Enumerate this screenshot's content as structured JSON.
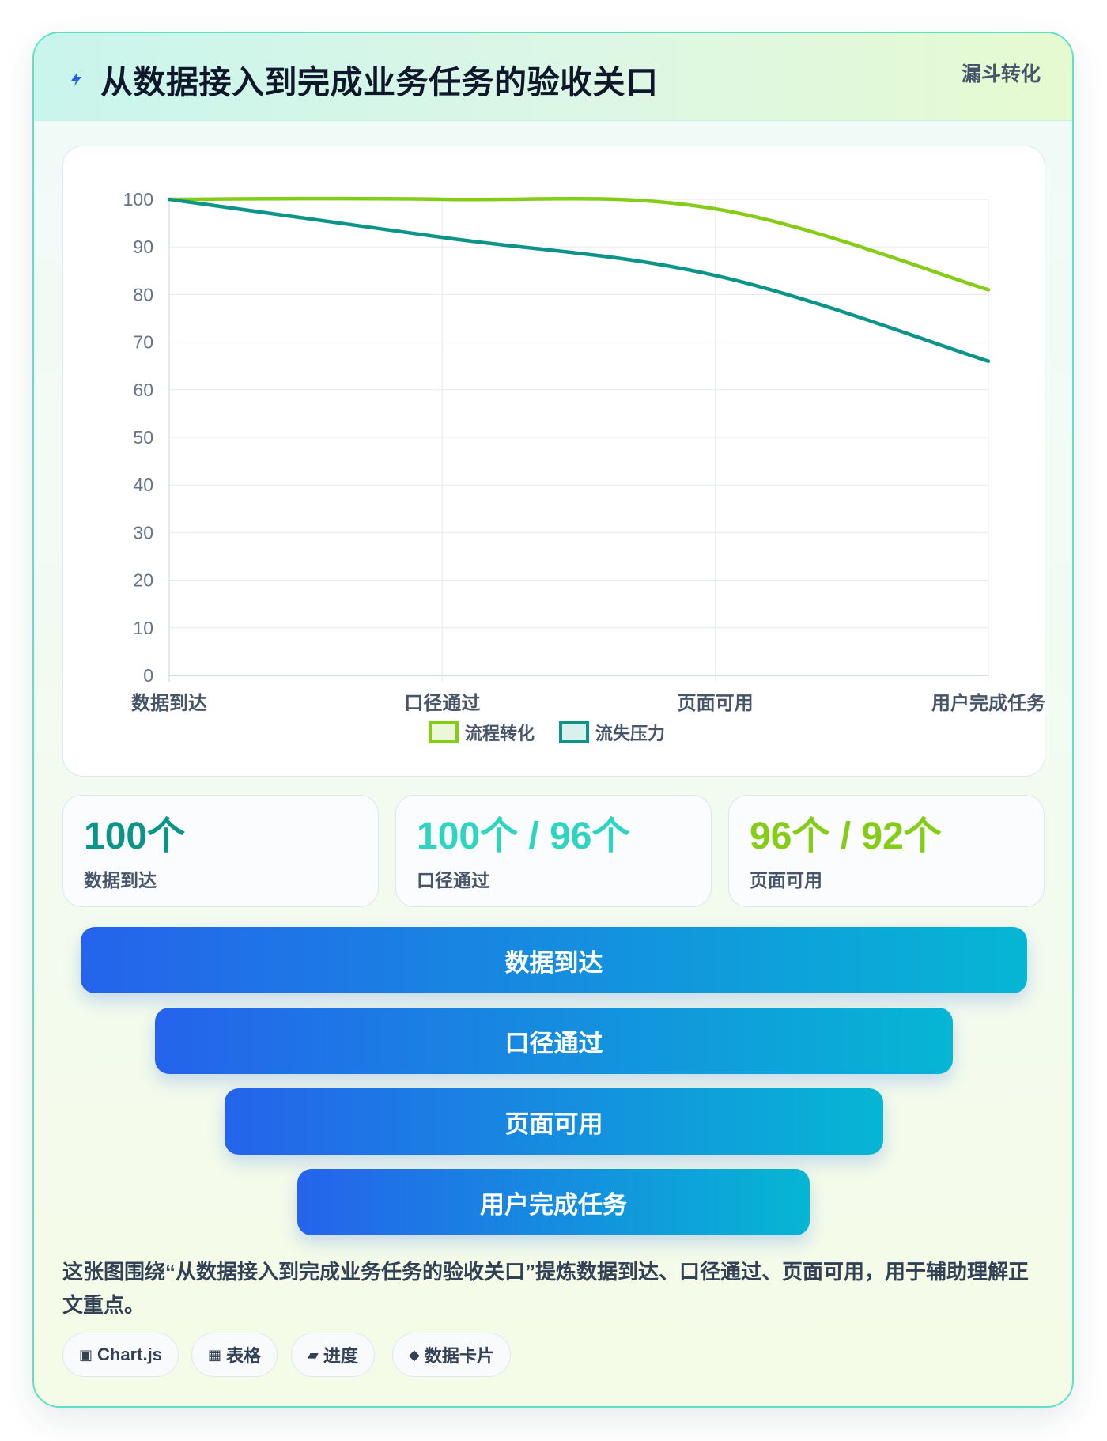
{
  "header": {
    "title": "从数据接入到完成业务任务的验收关口",
    "tag": "漏斗转化"
  },
  "chart_data": {
    "type": "line",
    "categories": [
      "数据到达",
      "口径通过",
      "页面可用",
      "用户完成任务"
    ],
    "series": [
      {
        "name": "流程转化",
        "values": [
          100,
          100,
          98,
          81
        ],
        "color": "#84cc16",
        "fill": "#ecf7d8"
      },
      {
        "name": "流失压力",
        "values": [
          100,
          92,
          84,
          66
        ],
        "color": "#0d9488",
        "fill": "#d9f0ee"
      }
    ],
    "ylim": [
      0,
      100
    ],
    "yticks": [
      0,
      10,
      20,
      30,
      40,
      50,
      60,
      70,
      80,
      90,
      100
    ],
    "grid": true,
    "legend": "bottom"
  },
  "stats": [
    {
      "value": "100个",
      "label": "数据到达",
      "color": "#0d9488"
    },
    {
      "value": "100个 / 96个",
      "label": "口径通过",
      "color": "#2dd4bf"
    },
    {
      "value": "96个 / 92个",
      "label": "页面可用",
      "color": "#84cc16"
    }
  ],
  "funnel": [
    "数据到达",
    "口径通过",
    "页面可用",
    "用户完成任务"
  ],
  "note": "这张图围绕“从数据接入到完成业务任务的验收关口”提炼数据到达、口径通过、页面可用，用于辅助理解正文重点。",
  "tags": [
    {
      "icon": "▣",
      "icon_name": "chart-icon",
      "label": "Chart.js"
    },
    {
      "icon": "▦",
      "icon_name": "table-icon",
      "label": "表格"
    },
    {
      "icon": "▰",
      "icon_name": "progress-icon",
      "label": "进度"
    },
    {
      "icon": "◆",
      "icon_name": "data-card-icon",
      "label": "数据卡片"
    }
  ]
}
